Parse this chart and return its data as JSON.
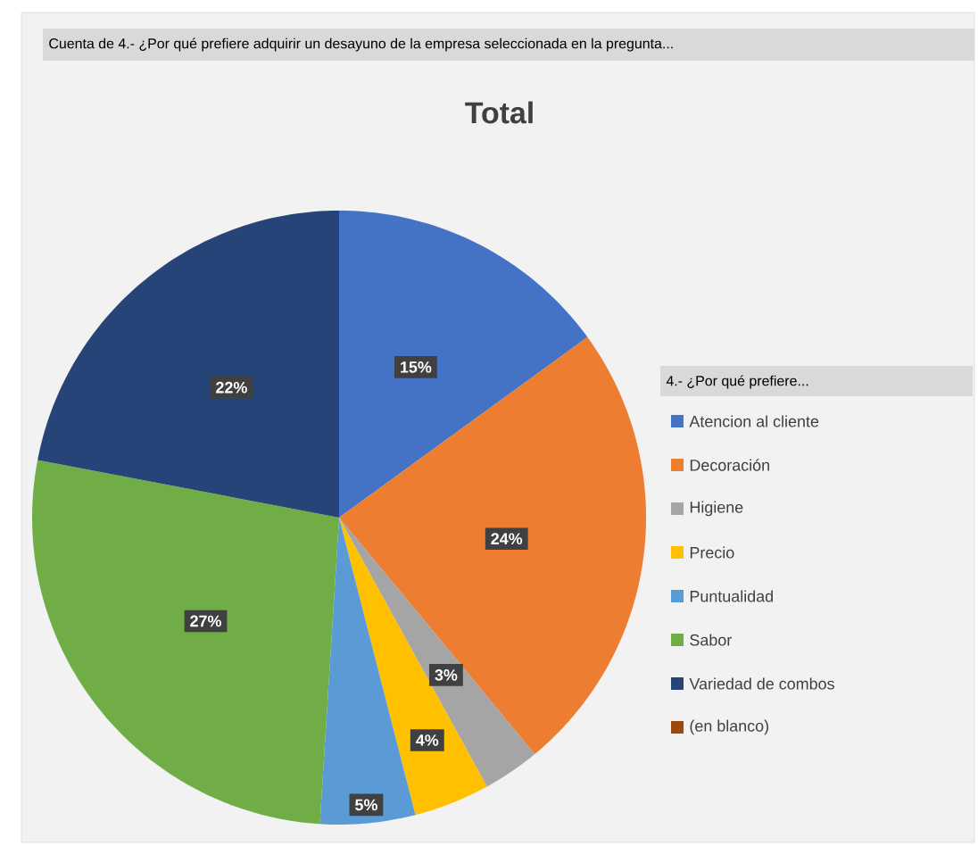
{
  "chart_data": {
    "type": "pie",
    "subtitle": "Cuenta de 4.- ¿Por qué prefiere adquirir un desayuno de la empresa seleccionada en la pregunta...",
    "title": "Total",
    "legend_title": "4.- ¿Por qué prefiere...",
    "legend": "right",
    "categories": [
      "Atencion al cliente",
      "Decoración",
      "Higiene",
      "Precio",
      "Puntualidad",
      "Sabor",
      "Variedad de combos",
      "(en blanco)"
    ],
    "values": [
      15,
      24,
      3,
      4,
      5,
      27,
      22,
      0
    ],
    "value_labels": [
      "15%",
      "24%",
      "3%",
      "4%",
      "5%",
      "27%",
      "22%",
      null
    ],
    "colors": [
      "#4472c4",
      "#ed7d31",
      "#a5a5a5",
      "#ffc000",
      "#5b9bd5",
      "#70ad47",
      "#264478",
      "#9e480e"
    ]
  }
}
